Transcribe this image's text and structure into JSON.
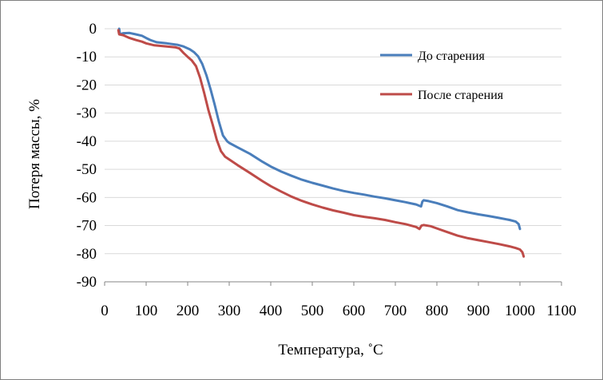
{
  "chart_data": {
    "type": "line",
    "xlabel": "Температура, ˚С",
    "ylabel": "Потеря массы, %",
    "xlim": [
      0,
      1100
    ],
    "ylim": [
      -90,
      0
    ],
    "x_ticks": [
      0,
      100,
      200,
      300,
      400,
      500,
      600,
      700,
      800,
      900,
      1000,
      1100
    ],
    "y_ticks": [
      0,
      -10,
      -20,
      -30,
      -40,
      -50,
      -60,
      -70,
      -80,
      -90
    ],
    "grid": "horizontal",
    "legend_position": "right",
    "series": [
      {
        "name": "До старения",
        "color": "#4a7ebb",
        "points": [
          [
            35,
            0
          ],
          [
            37,
            -2
          ],
          [
            45,
            -1.6
          ],
          [
            60,
            -1.5
          ],
          [
            75,
            -2
          ],
          [
            90,
            -2.5
          ],
          [
            100,
            -3.3
          ],
          [
            110,
            -4
          ],
          [
            125,
            -4.8
          ],
          [
            150,
            -5.2
          ],
          [
            175,
            -5.7
          ],
          [
            190,
            -6.3
          ],
          [
            205,
            -7.3
          ],
          [
            215,
            -8.3
          ],
          [
            225,
            -9.8
          ],
          [
            235,
            -12.5
          ],
          [
            245,
            -16.5
          ],
          [
            255,
            -21.5
          ],
          [
            265,
            -27
          ],
          [
            275,
            -33
          ],
          [
            285,
            -38
          ],
          [
            295,
            -40
          ],
          [
            300,
            -40.6
          ],
          [
            320,
            -42.2
          ],
          [
            350,
            -44.5
          ],
          [
            380,
            -47.3
          ],
          [
            400,
            -49
          ],
          [
            425,
            -50.8
          ],
          [
            450,
            -52.3
          ],
          [
            475,
            -53.7
          ],
          [
            500,
            -54.8
          ],
          [
            525,
            -55.8
          ],
          [
            550,
            -56.8
          ],
          [
            575,
            -57.7
          ],
          [
            600,
            -58.4
          ],
          [
            625,
            -59
          ],
          [
            650,
            -59.7
          ],
          [
            675,
            -60.3
          ],
          [
            700,
            -61
          ],
          [
            725,
            -61.7
          ],
          [
            750,
            -62.5
          ],
          [
            762,
            -63.2
          ],
          [
            765,
            -61.5
          ],
          [
            768,
            -61
          ],
          [
            780,
            -61.3
          ],
          [
            800,
            -62
          ],
          [
            825,
            -63.2
          ],
          [
            850,
            -64.5
          ],
          [
            875,
            -65.3
          ],
          [
            900,
            -66
          ],
          [
            925,
            -66.6
          ],
          [
            950,
            -67.3
          ],
          [
            975,
            -68
          ],
          [
            990,
            -68.6
          ],
          [
            997,
            -69.5
          ],
          [
            1000,
            -71.2
          ]
        ]
      },
      {
        "name": "После старения",
        "color": "#be4b48",
        "points": [
          [
            33,
            -0.5
          ],
          [
            35,
            -2
          ],
          [
            45,
            -2.3
          ],
          [
            60,
            -3.3
          ],
          [
            75,
            -4
          ],
          [
            90,
            -4.6
          ],
          [
            100,
            -5.2
          ],
          [
            120,
            -5.9
          ],
          [
            150,
            -6.3
          ],
          [
            170,
            -6.6
          ],
          [
            180,
            -7
          ],
          [
            190,
            -8.6
          ],
          [
            200,
            -10
          ],
          [
            210,
            -11.3
          ],
          [
            220,
            -13.3
          ],
          [
            230,
            -17.5
          ],
          [
            240,
            -23
          ],
          [
            250,
            -29
          ],
          [
            260,
            -34
          ],
          [
            270,
            -39.5
          ],
          [
            280,
            -43.5
          ],
          [
            290,
            -45.5
          ],
          [
            300,
            -46.5
          ],
          [
            320,
            -48.5
          ],
          [
            350,
            -51.3
          ],
          [
            380,
            -54.2
          ],
          [
            400,
            -56
          ],
          [
            425,
            -57.9
          ],
          [
            450,
            -59.7
          ],
          [
            475,
            -61.2
          ],
          [
            500,
            -62.5
          ],
          [
            525,
            -63.6
          ],
          [
            550,
            -64.6
          ],
          [
            575,
            -65.4
          ],
          [
            600,
            -66.3
          ],
          [
            625,
            -66.9
          ],
          [
            650,
            -67.4
          ],
          [
            675,
            -68
          ],
          [
            700,
            -68.8
          ],
          [
            725,
            -69.5
          ],
          [
            750,
            -70.5
          ],
          [
            758,
            -71.2
          ],
          [
            763,
            -70
          ],
          [
            768,
            -69.8
          ],
          [
            785,
            -70.2
          ],
          [
            800,
            -71
          ],
          [
            825,
            -72.3
          ],
          [
            850,
            -73.6
          ],
          [
            875,
            -74.5
          ],
          [
            900,
            -75.2
          ],
          [
            925,
            -75.9
          ],
          [
            950,
            -76.6
          ],
          [
            975,
            -77.4
          ],
          [
            990,
            -78
          ],
          [
            1000,
            -78.5
          ],
          [
            1006,
            -79.5
          ],
          [
            1009,
            -81
          ]
        ]
      }
    ]
  }
}
